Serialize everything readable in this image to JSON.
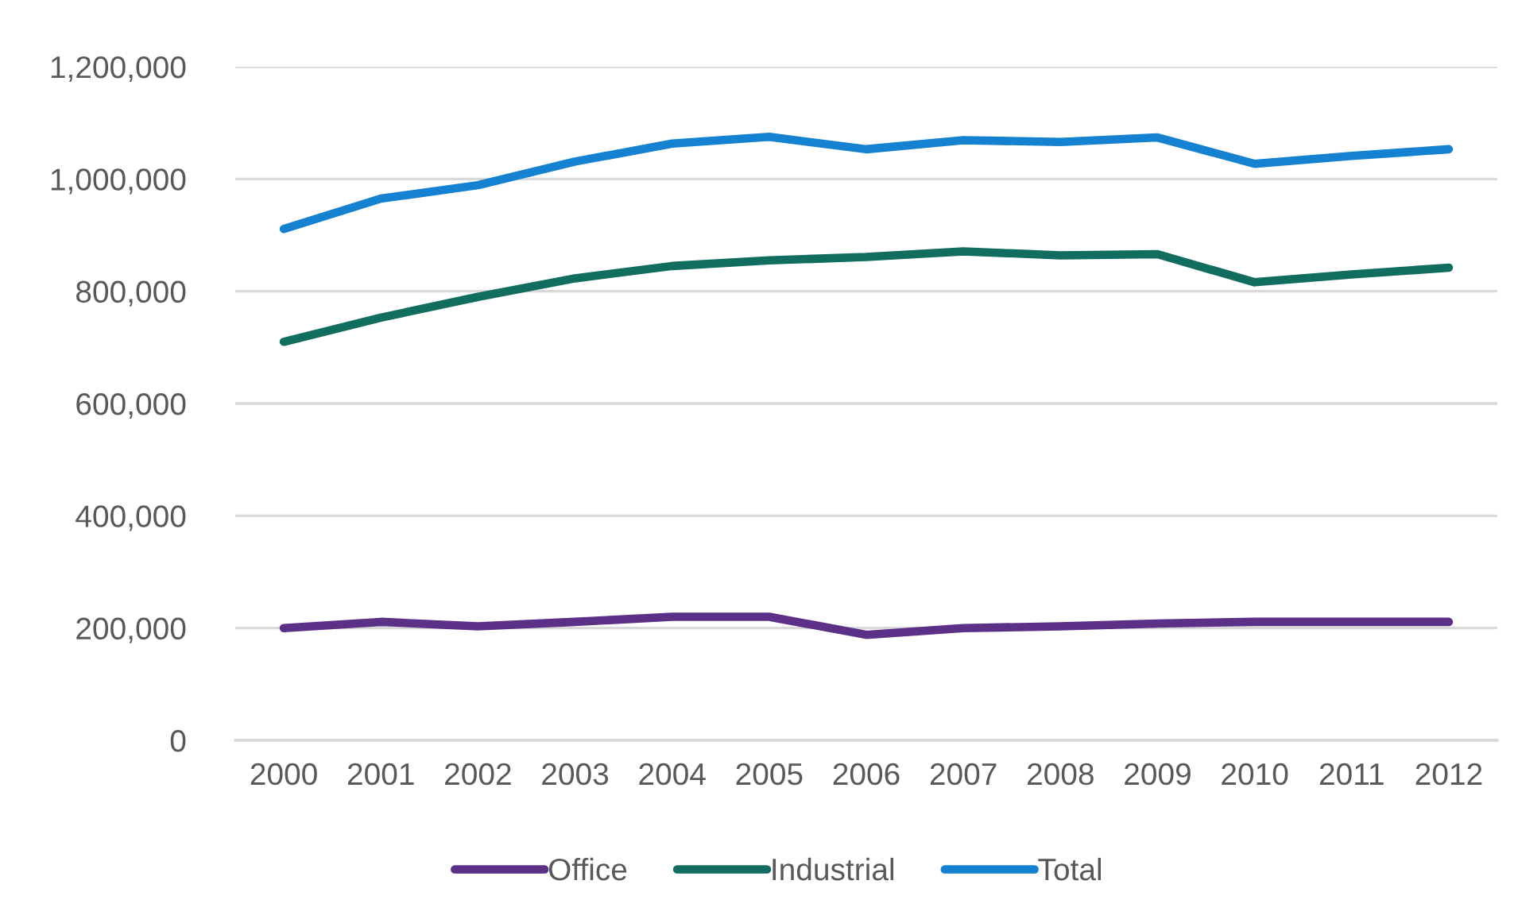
{
  "chart_data": {
    "type": "line",
    "categories": [
      "2000",
      "2001",
      "2002",
      "2003",
      "2004",
      "2005",
      "2006",
      "2007",
      "2008",
      "2009",
      "2010",
      "2011",
      "2012"
    ],
    "series": [
      {
        "name": "Office",
        "color": "#5b3086",
        "values": [
          200000,
          211000,
          203000,
          211000,
          220000,
          220000,
          188000,
          200000,
          203000,
          208000,
          211000,
          211000,
          211000
        ]
      },
      {
        "name": "Industrial",
        "color": "#116d60",
        "values": [
          710000,
          753000,
          790000,
          823000,
          845000,
          855000,
          861000,
          871000,
          864000,
          866000,
          816000,
          830000,
          842000
        ]
      },
      {
        "name": "Total",
        "color": "#1581d1",
        "values": [
          911000,
          965000,
          989000,
          1031000,
          1063000,
          1075000,
          1053000,
          1069000,
          1066000,
          1074000,
          1027000,
          1041000,
          1053000
        ]
      }
    ],
    "ylim": [
      0,
      1200000
    ],
    "yticks": [
      0,
      {
        "value": 200000,
        "label": "200,000"
      },
      {
        "value": 400000,
        "label": "400,000"
      },
      {
        "value": 600000,
        "label": "600,000"
      },
      {
        "value": 800000,
        "label": "800,000"
      },
      {
        "value": 1000000,
        "label": "1,000,000"
      },
      {
        "value": 1200000,
        "label": "1,200,000"
      }
    ],
    "grid": "y",
    "legend": "bottom",
    "marker": "none",
    "line_style": "solid"
  }
}
